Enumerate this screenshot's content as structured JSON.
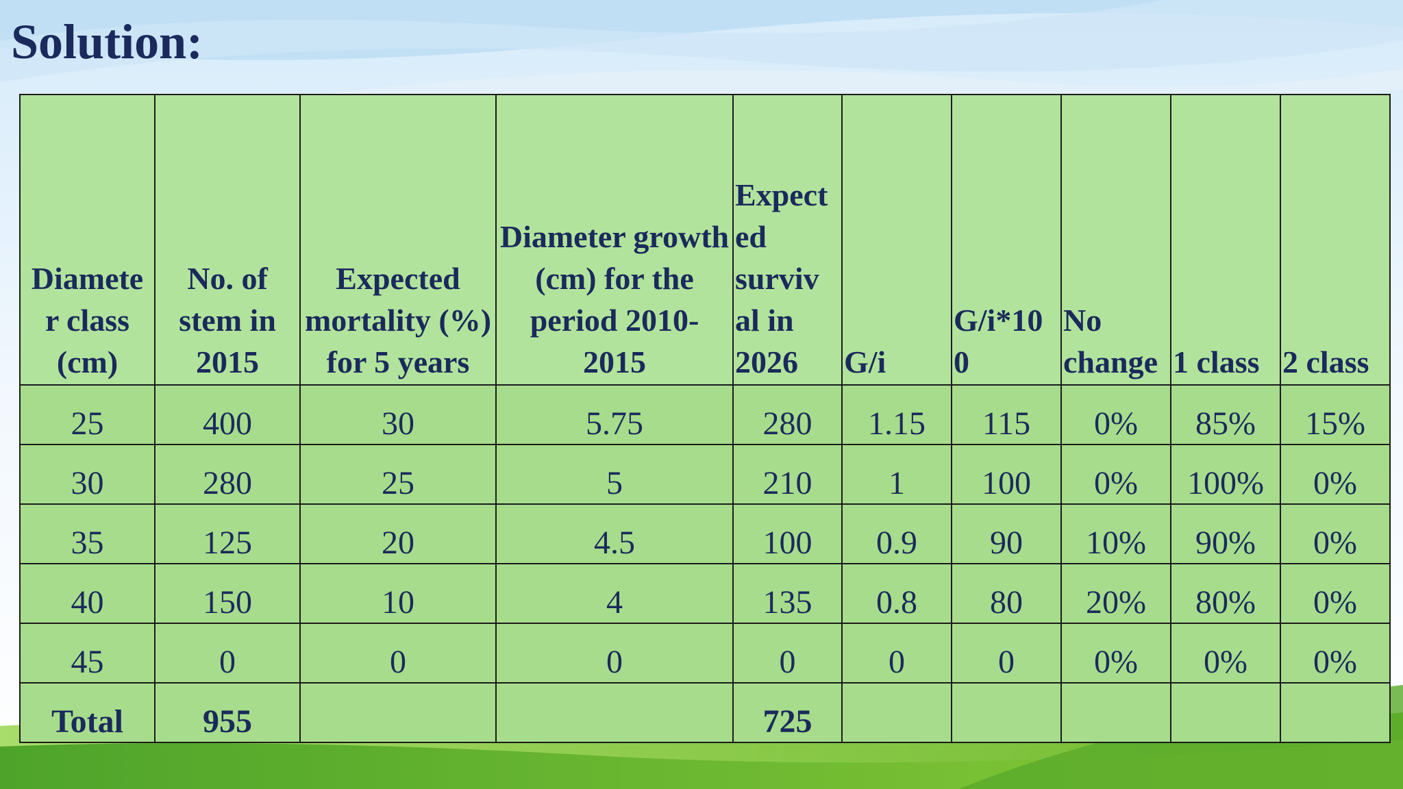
{
  "slide": {
    "title": "Solution:"
  },
  "table": {
    "headers": [
      "Diamete r class (cm)",
      "No. of stem in 2015",
      "Expected mortality (%) for 5 years",
      "Diameter growth (cm) for the period 2010-2015",
      "Expect ed surviv al in 2026",
      "G/i",
      "G/i*10 0",
      "No change",
      "1 class",
      "2 class"
    ],
    "rows": [
      [
        "25",
        "400",
        "30",
        "5.75",
        "280",
        "1.15",
        "115",
        "0%",
        "85%",
        "15%"
      ],
      [
        "30",
        "280",
        "25",
        "5",
        "210",
        "1",
        "100",
        "0%",
        "100%",
        "0%"
      ],
      [
        "35",
        "125",
        "20",
        "4.5",
        "100",
        "0.9",
        "90",
        "10%",
        "90%",
        "0%"
      ],
      [
        "40",
        "150",
        "10",
        "4",
        "135",
        "0.8",
        "80",
        "20%",
        "80%",
        "0%"
      ],
      [
        "45",
        "0",
        "0",
        "0",
        "0",
        "0",
        "0",
        "0%",
        "0%",
        "0%"
      ]
    ],
    "total": [
      "Total",
      "955",
      "",
      "",
      "725",
      "",
      "",
      "",
      "",
      ""
    ]
  },
  "colors": {
    "title_text": "#1a2a5c",
    "table_fill": "#a7dc8c",
    "header_fill": "#b2e39c",
    "border": "#1b1b1b"
  }
}
